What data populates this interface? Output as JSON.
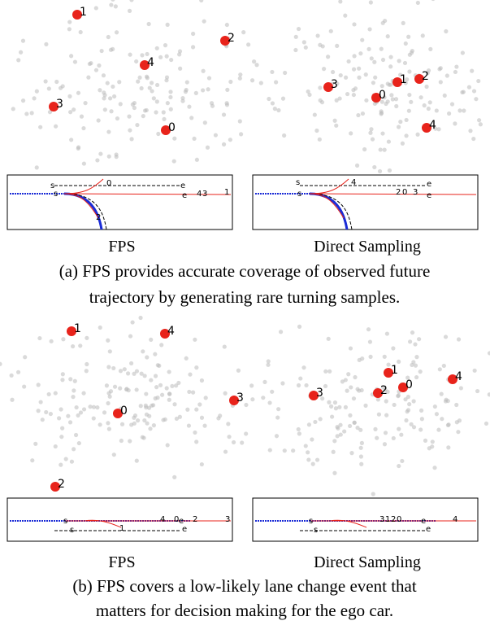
{
  "panels": [
    {
      "subfigures": [
        {
          "label": "FPS",
          "points": [
            "1",
            "2",
            "4",
            "3",
            "0"
          ],
          "trajectory_labels": [
            "s",
            "0",
            "e",
            "s",
            "e",
            "4",
            "3",
            "1",
            "2"
          ]
        },
        {
          "label": "Direct Sampling",
          "points": [
            "3",
            "0",
            "1",
            "2",
            "4"
          ],
          "trajectory_labels": [
            "s",
            "4",
            "e",
            "s",
            "2",
            "0",
            "3",
            "e"
          ]
        }
      ],
      "caption_lines": [
        "(a) FPS provides accurate coverage of observed future",
        "trajectory by generating rare turning samples."
      ]
    },
    {
      "subfigures": [
        {
          "label": "FPS",
          "points": [
            "1",
            "4",
            "3",
            "0",
            "2"
          ],
          "trajectory_labels": [
            "s",
            "4",
            "0",
            "e",
            "2",
            "3",
            "s",
            "1",
            "e"
          ]
        },
        {
          "label": "Direct Sampling",
          "points": [
            "1",
            "4",
            "3",
            "2",
            "0"
          ],
          "trajectory_labels": [
            "s",
            "3",
            "1",
            "2",
            "0",
            "e",
            "4",
            "s",
            "e"
          ]
        }
      ],
      "caption_lines": [
        "(b) FPS covers a low-likely lane change event that",
        "matters for decision making for the ego car."
      ]
    }
  ]
}
